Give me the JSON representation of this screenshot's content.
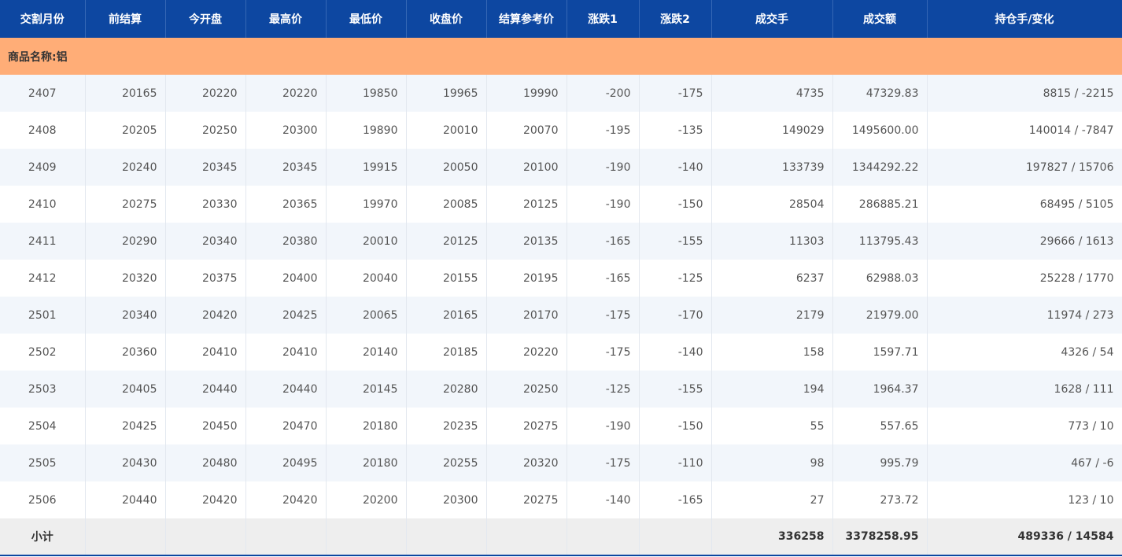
{
  "table": {
    "header": [
      "交割月份",
      "前结算",
      "今开盘",
      "最高价",
      "最低价",
      "收盘价",
      "结算参考价",
      "涨跌1",
      "涨跌2",
      "成交手",
      "成交额",
      "持仓手/变化"
    ],
    "group": "商品名称:铝",
    "rows": [
      [
        "2407",
        "20165",
        "20220",
        "20220",
        "19850",
        "19965",
        "19990",
        "-200",
        "-175",
        "4735",
        "47329.83",
        "8815 / -2215"
      ],
      [
        "2408",
        "20205",
        "20250",
        "20300",
        "19890",
        "20010",
        "20070",
        "-195",
        "-135",
        "149029",
        "1495600.00",
        "140014 / -7847"
      ],
      [
        "2409",
        "20240",
        "20345",
        "20345",
        "19915",
        "20050",
        "20100",
        "-190",
        "-140",
        "133739",
        "1344292.22",
        "197827 / 15706"
      ],
      [
        "2410",
        "20275",
        "20330",
        "20365",
        "19970",
        "20085",
        "20125",
        "-190",
        "-150",
        "28504",
        "286885.21",
        "68495 / 5105"
      ],
      [
        "2411",
        "20290",
        "20340",
        "20380",
        "20010",
        "20125",
        "20135",
        "-165",
        "-155",
        "11303",
        "113795.43",
        "29666 / 1613"
      ],
      [
        "2412",
        "20320",
        "20375",
        "20400",
        "20040",
        "20155",
        "20195",
        "-165",
        "-125",
        "6237",
        "62988.03",
        "25228 / 1770"
      ],
      [
        "2501",
        "20340",
        "20420",
        "20425",
        "20065",
        "20165",
        "20170",
        "-175",
        "-170",
        "2179",
        "21979.00",
        "11974 / 273"
      ],
      [
        "2502",
        "20360",
        "20410",
        "20410",
        "20140",
        "20185",
        "20220",
        "-175",
        "-140",
        "158",
        "1597.71",
        "4326 / 54"
      ],
      [
        "2503",
        "20405",
        "20440",
        "20440",
        "20145",
        "20280",
        "20250",
        "-125",
        "-155",
        "194",
        "1964.37",
        "1628 / 111"
      ],
      [
        "2504",
        "20425",
        "20450",
        "20470",
        "20180",
        "20235",
        "20275",
        "-190",
        "-150",
        "55",
        "557.65",
        "773 / 10"
      ],
      [
        "2505",
        "20430",
        "20480",
        "20495",
        "20180",
        "20255",
        "20320",
        "-175",
        "-110",
        "98",
        "995.79",
        "467 / -6"
      ],
      [
        "2506",
        "20440",
        "20420",
        "20420",
        "20200",
        "20300",
        "20275",
        "-140",
        "-165",
        "27",
        "273.72",
        "123 / 10"
      ]
    ],
    "subtotal": {
      "label": "小计",
      "volume": "336258",
      "turnover": "3378258.95",
      "open_interest": "489336 / 14584"
    }
  }
}
